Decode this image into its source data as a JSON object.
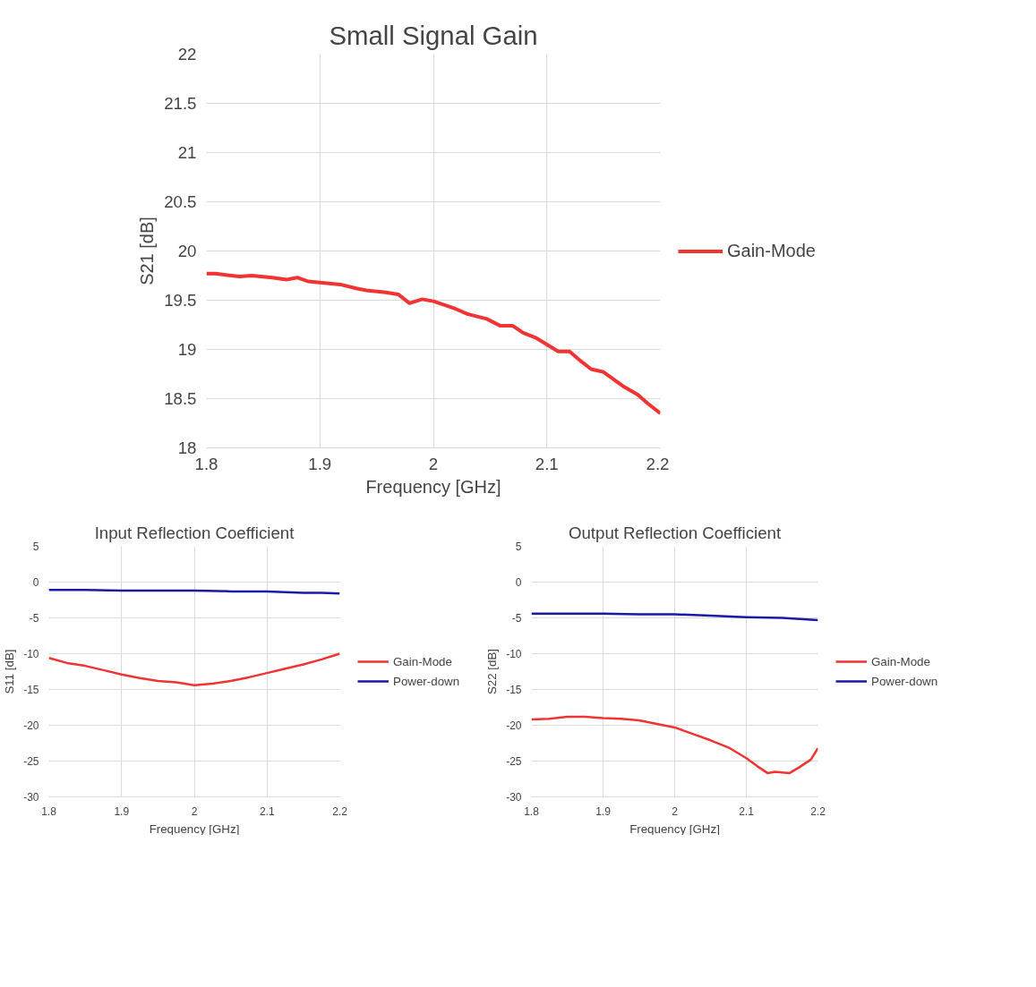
{
  "chart_data": [
    {
      "type": "line",
      "title": "Small Signal Gain",
      "xlabel": "Frequency [GHz]",
      "ylabel": "S21 [dB]",
      "xlim": [
        1.8,
        2.2
      ],
      "ylim": [
        18,
        22
      ],
      "xticks": [
        1.8,
        1.9,
        2,
        2.1,
        2.2
      ],
      "yticks": [
        18,
        18.5,
        19,
        19.5,
        20,
        20.5,
        21,
        21.5,
        22
      ],
      "grid": true,
      "legend": "right",
      "line_style": "solid",
      "series": [
        {
          "name": "Gain-Mode",
          "color": "#f03333",
          "x": [
            1.8,
            1.808,
            1.829,
            1.84,
            1.858,
            1.871,
            1.88,
            1.89,
            1.9,
            1.918,
            1.932,
            1.941,
            1.958,
            1.969,
            1.979,
            1.99,
            2.0,
            2.018,
            2.03,
            2.047,
            2.059,
            2.07,
            2.079,
            2.09,
            2.1,
            2.11,
            2.12,
            2.13,
            2.139,
            2.15,
            2.168,
            2.18,
            2.189,
            2.2
          ],
          "values": [
            19.77,
            19.77,
            19.74,
            19.75,
            19.73,
            19.71,
            19.73,
            19.69,
            19.68,
            19.66,
            19.62,
            19.6,
            19.58,
            19.56,
            19.47,
            19.51,
            19.49,
            19.42,
            19.36,
            19.31,
            19.24,
            19.24,
            19.17,
            19.12,
            19.05,
            18.98,
            18.98,
            18.88,
            18.8,
            18.77,
            18.62,
            18.54,
            18.45,
            18.35
          ]
        }
      ]
    },
    {
      "type": "line",
      "title": "Input Reflection Coefficient",
      "xlabel": "Frequency [GHz]",
      "ylabel": "S11 [dB]",
      "xlim": [
        1.8,
        2.2
      ],
      "ylim": [
        -30,
        5
      ],
      "xticks": [
        1.8,
        1.9,
        2,
        2.1,
        2.2
      ],
      "yticks": [
        -30,
        -25,
        -20,
        -15,
        -10,
        -5,
        0,
        5
      ],
      "grid": true,
      "legend": "right",
      "line_style": "solid",
      "series": [
        {
          "name": "Gain-Mode",
          "color": "#f03333",
          "x": [
            1.8,
            1.825,
            1.85,
            1.875,
            1.9,
            1.925,
            1.95,
            1.975,
            2.0,
            2.025,
            2.05,
            2.075,
            2.1,
            2.125,
            2.15,
            2.175,
            2.2
          ],
          "values": [
            -10.6,
            -11.3,
            -11.7,
            -12.3,
            -12.9,
            -13.4,
            -13.8,
            -14.0,
            -14.4,
            -14.2,
            -13.8,
            -13.3,
            -12.7,
            -12.1,
            -11.5,
            -10.8,
            -10.0
          ]
        },
        {
          "name": "Power-down",
          "color": "#1a1aa6",
          "x": [
            1.8,
            1.85,
            1.9,
            1.95,
            2.0,
            2.05,
            2.1,
            2.125,
            2.15,
            2.175,
            2.2
          ],
          "values": [
            -1.1,
            -1.1,
            -1.2,
            -1.2,
            -1.2,
            -1.3,
            -1.3,
            -1.4,
            -1.5,
            -1.5,
            -1.6
          ]
        }
      ]
    },
    {
      "type": "line",
      "title": "Output Reflection Coefficient",
      "xlabel": "Frequency [GHz]",
      "ylabel": "S22 [dB]",
      "xlim": [
        1.8,
        2.2
      ],
      "ylim": [
        -30,
        5
      ],
      "xticks": [
        1.8,
        1.9,
        2,
        2.1,
        2.2
      ],
      "yticks": [
        -30,
        -25,
        -20,
        -15,
        -10,
        -5,
        0,
        5
      ],
      "grid": true,
      "legend": "right",
      "line_style": "solid",
      "series": [
        {
          "name": "Gain-Mode",
          "color": "#f03333",
          "x": [
            1.8,
            1.825,
            1.85,
            1.875,
            1.9,
            1.925,
            1.95,
            1.975,
            2.0,
            2.025,
            2.05,
            2.075,
            2.1,
            2.115,
            2.13,
            2.14,
            2.16,
            2.175,
            2.19,
            2.2
          ],
          "values": [
            -19.2,
            -19.1,
            -18.8,
            -18.8,
            -19.0,
            -19.1,
            -19.3,
            -19.8,
            -20.3,
            -21.2,
            -22.1,
            -23.1,
            -24.6,
            -25.7,
            -26.7,
            -26.5,
            -26.7,
            -25.8,
            -24.8,
            -23.2
          ]
        },
        {
          "name": "Power-down",
          "color": "#1a1aa6",
          "x": [
            1.8,
            1.85,
            1.9,
            1.95,
            2.0,
            2.05,
            2.1,
            2.15,
            2.2
          ],
          "values": [
            -4.4,
            -4.4,
            -4.4,
            -4.5,
            -4.5,
            -4.7,
            -4.9,
            -5.0,
            -5.3
          ]
        }
      ]
    }
  ]
}
